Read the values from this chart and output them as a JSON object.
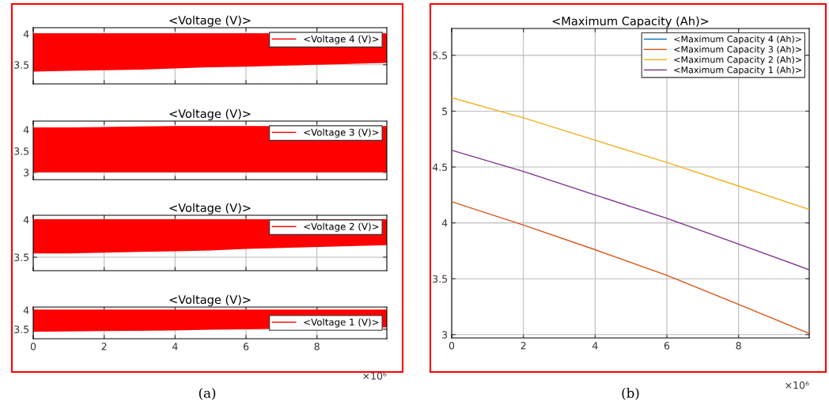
{
  "chart_data": [
    {
      "type": "line",
      "title": "<Voltage (V)>",
      "x": [
        0,
        1,
        2,
        3,
        4,
        5,
        6,
        9.97
      ],
      "series": [
        {
          "name": "<Voltage 4 (V)>",
          "color": "#ff0000",
          "values": [
            4.0,
            4.0,
            4.0,
            4.0,
            4.0,
            4.0,
            4.0,
            4.0
          ],
          "lower": [
            3.39,
            3.4,
            3.41,
            3.42,
            3.44,
            3.46,
            3.47,
            3.53
          ],
          "upper": [
            4.0,
            4.0,
            4.0,
            4.0,
            4.0,
            4.0,
            4.0,
            4.0
          ]
        }
      ],
      "xlim": [
        0,
        9.97
      ],
      "xticks": [
        0,
        2,
        4,
        6,
        8
      ],
      "ylim": [
        3.19,
        4.1
      ],
      "yticks": [
        3.5,
        4
      ],
      "grid": true,
      "legend": "top right",
      "tick_labels": "y"
    },
    {
      "type": "line",
      "title": "<Voltage (V)>",
      "x": [
        0,
        1,
        2,
        3,
        4,
        5,
        6,
        9.97
      ],
      "series": [
        {
          "name": "<Voltage 3 (V)>",
          "color": "#ff0000",
          "values": [
            4.04,
            4.04,
            4.05,
            4.06,
            4.07,
            4.07,
            4.07,
            4.07
          ],
          "lower": [
            3.0,
            3.0,
            3.0,
            3.0,
            3.0,
            3.0,
            3.0,
            3.0
          ],
          "upper": [
            4.04,
            4.04,
            4.05,
            4.06,
            4.07,
            4.07,
            4.07,
            4.07
          ]
        }
      ],
      "xlim": [
        0,
        9.97
      ],
      "xticks": [
        0,
        2,
        4,
        6,
        8
      ],
      "ylim": [
        2.83,
        4.2
      ],
      "yticks": [
        3,
        3.5,
        4
      ],
      "grid": true,
      "legend": "top right",
      "tick_labels": "y"
    },
    {
      "type": "line",
      "title": "<Voltage (V)>",
      "x": [
        0,
        1,
        2,
        3,
        4,
        5,
        6,
        9.97
      ],
      "series": [
        {
          "name": "<Voltage 2 (V)>",
          "color": "#ff0000",
          "values": [
            4.0,
            4.0,
            4.0,
            4.0,
            4.0,
            4.0,
            4.0,
            4.0
          ],
          "lower": [
            3.55,
            3.55,
            3.56,
            3.57,
            3.58,
            3.59,
            3.61,
            3.66
          ],
          "upper": [
            4.0,
            4.0,
            4.0,
            4.0,
            4.0,
            4.0,
            4.0,
            4.0
          ]
        }
      ],
      "xlim": [
        0,
        9.97
      ],
      "xticks": [
        0,
        2,
        4,
        6,
        8
      ],
      "ylim": [
        3.32,
        4.06
      ],
      "yticks": [
        3.5,
        4
      ],
      "grid": true,
      "legend": "top right",
      "tick_labels": "y"
    },
    {
      "type": "line",
      "title": "<Voltage (V)>",
      "x": [
        0,
        1,
        2,
        3,
        4,
        5,
        6,
        9.97
      ],
      "series": [
        {
          "name": "<Voltage 1 (V)>",
          "color": "#ff0000",
          "values": [
            4.0,
            4.0,
            4.0,
            4.0,
            4.0,
            4.0,
            4.0,
            4.0
          ],
          "lower": [
            3.43,
            3.44,
            3.45,
            3.46,
            3.47,
            3.49,
            3.5,
            3.55
          ],
          "upper": [
            4.0,
            4.0,
            4.0,
            4.0,
            4.0,
            4.0,
            4.0,
            4.0
          ]
        }
      ],
      "xlim": [
        0,
        9.97
      ],
      "xticks": [
        0,
        2,
        4,
        6,
        8
      ],
      "ylim": [
        3.25,
        4.08
      ],
      "yticks": [
        3.5,
        4
      ],
      "grid": true,
      "legend": "right",
      "annotations": [
        "×10⁶",
        "(a)"
      ]
    },
    {
      "type": "line",
      "title": "<Maximum Capacity (Ah)>",
      "x": [
        0,
        2,
        4,
        6,
        8,
        9.97
      ],
      "series": [
        {
          "name": "<Maximum Capacity 4 (Ah)>",
          "color": "#0072bd",
          "values": [
            null,
            null,
            null,
            null,
            null,
            null
          ]
        },
        {
          "name": "<Maximum Capacity 3 (Ah)>",
          "color": "#d95319",
          "values": [
            4.19,
            3.98,
            3.76,
            3.53,
            3.27,
            3.01
          ]
        },
        {
          "name": "<Maximum Capacity 2 (Ah)>",
          "color": "#edb120",
          "values": [
            5.12,
            4.94,
            4.74,
            4.54,
            4.33,
            4.12
          ]
        },
        {
          "name": "<Maximum Capacity 1 (Ah)>",
          "color": "#7e2f8e",
          "values": [
            4.65,
            4.46,
            4.25,
            4.04,
            3.81,
            3.58
          ]
        }
      ],
      "xlim": [
        0,
        9.97
      ],
      "xticks": [
        0,
        2,
        4,
        6,
        8
      ],
      "ylim": [
        2.97,
        5.74
      ],
      "yticks": [
        3,
        3.5,
        4,
        4.5,
        5,
        5.5
      ],
      "grid": true,
      "legend": "top right",
      "annotations": [
        "×10⁶",
        "(b)"
      ]
    }
  ]
}
